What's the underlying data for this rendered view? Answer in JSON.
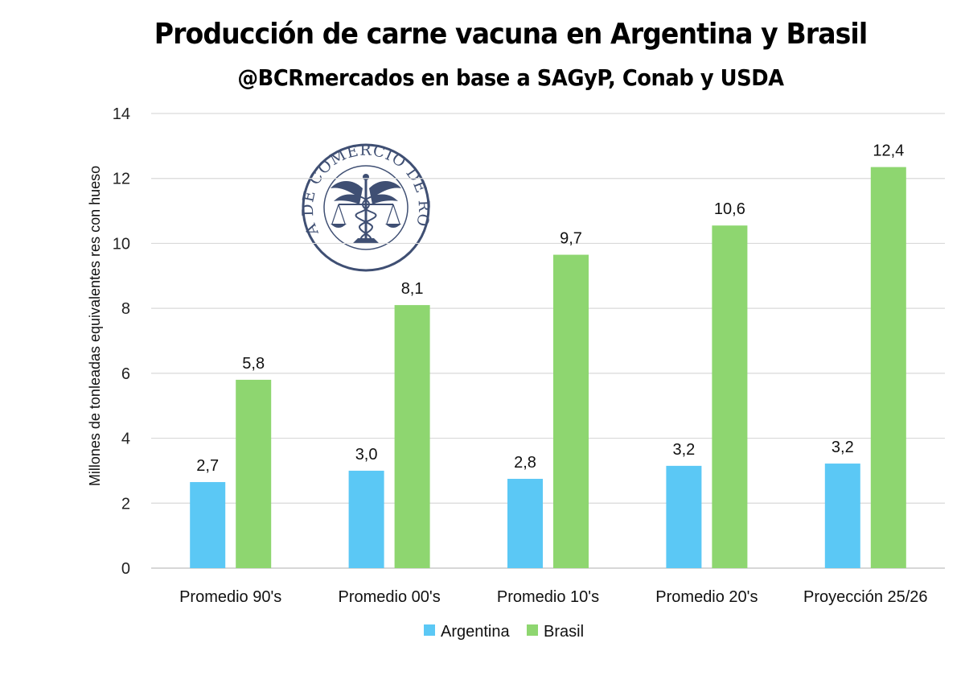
{
  "chart_data": {
    "type": "bar",
    "title": "Producción de carne vacuna en Argentina y Brasil",
    "subtitle": "@BCRmercados en base a SAGyP, Conab y USDA",
    "xlabel": "",
    "ylabel": "Millones de tonleadas equivalentes res con hueso",
    "ylim": [
      0,
      14
    ],
    "yticks": [
      0,
      2,
      4,
      6,
      8,
      10,
      12,
      14
    ],
    "grid": true,
    "legend_position": "bottom",
    "categories": [
      "Promedio 90's",
      "Promedio 00's",
      "Promedio 10's",
      "Promedio 20's",
      "Proyección 25/26"
    ],
    "series": [
      {
        "name": "Argentina",
        "color": "#5bc8f5",
        "values": [
          2.65,
          3.0,
          2.75,
          3.15,
          3.22
        ],
        "labels": [
          "2,7",
          "3,0",
          "2,8",
          "3,2",
          "3,2"
        ]
      },
      {
        "name": "Brasil",
        "color": "#8ed670",
        "values": [
          5.8,
          8.1,
          9.65,
          10.55,
          12.35
        ],
        "labels": [
          "5,8",
          "8,1",
          "9,7",
          "10,6",
          "12,4"
        ]
      }
    ]
  },
  "watermark": {
    "text": "BOLSA DE COMERCIO DE ROSARIO",
    "color": "#3f4f73"
  }
}
